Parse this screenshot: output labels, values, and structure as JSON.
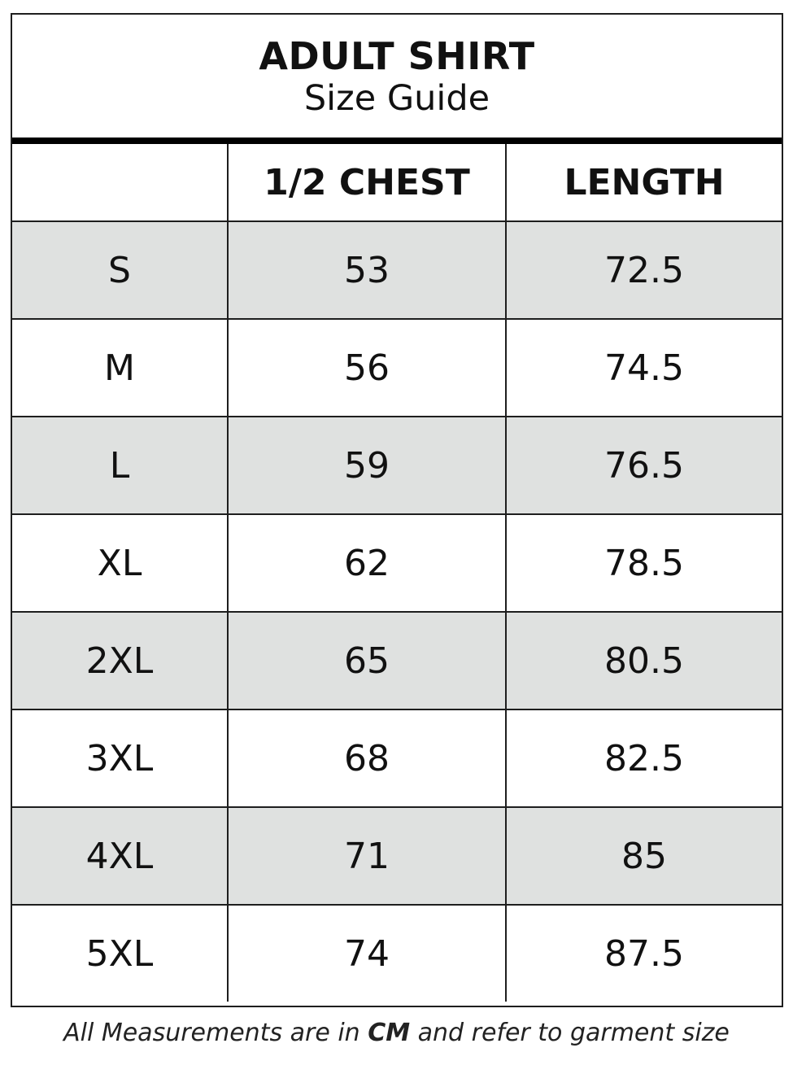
{
  "title": "ADULT SHIRT",
  "subtitle": "Size Guide",
  "columns": [
    "",
    "1/2 CHEST",
    "LENGTH"
  ],
  "rows": [
    {
      "size": "S",
      "chest": "53",
      "length": "72.5"
    },
    {
      "size": "M",
      "chest": "56",
      "length": "74.5"
    },
    {
      "size": "L",
      "chest": "59",
      "length": "76.5"
    },
    {
      "size": "XL",
      "chest": "62",
      "length": "78.5"
    },
    {
      "size": "2XL",
      "chest": "65",
      "length": "80.5"
    },
    {
      "size": "3XL",
      "chest": "68",
      "length": "82.5"
    },
    {
      "size": "4XL",
      "chest": "71",
      "length": "85"
    },
    {
      "size": "5XL",
      "chest": "74",
      "length": "87.5"
    }
  ],
  "note": {
    "before": "All Measurements are in ",
    "unit": "CM",
    "after": " and refer to garment size"
  },
  "colors": {
    "shaded_row": "#dfe1e0",
    "border": "#1e1e1e"
  }
}
